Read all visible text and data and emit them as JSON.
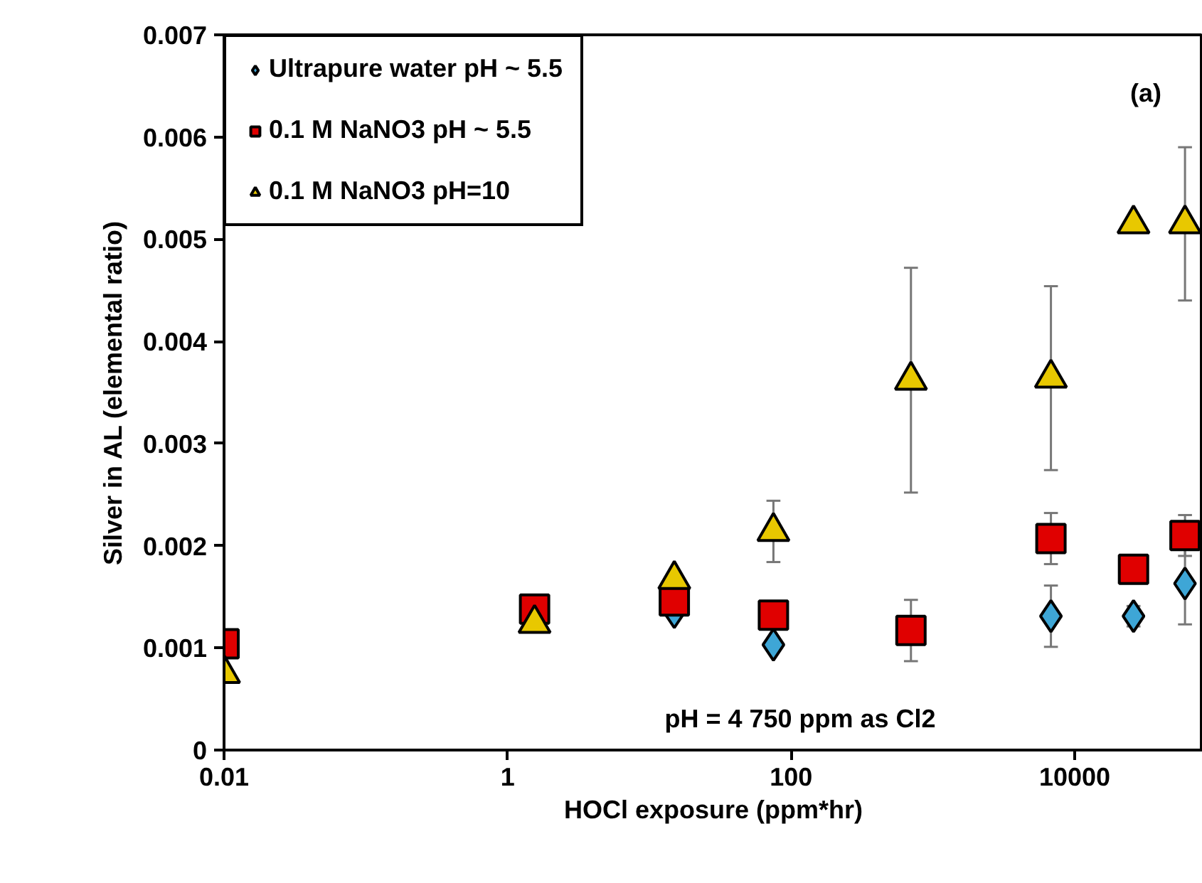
{
  "chart_data": {
    "type": "scatter",
    "xlabel": "HOCl exposure (ppm*hr)",
    "ylabel": "Silver in AL (elemental ratio)",
    "log": "x",
    "x": [
      0.01,
      1.55,
      15,
      75,
      700,
      6800,
      26000,
      60000
    ],
    "xlim": [
      0.01,
      80000
    ],
    "xticks": [
      0.01,
      1,
      100,
      10000
    ],
    "ylim": [
      0,
      0.007
    ],
    "yticks": [
      0,
      0.001,
      0.002,
      0.003,
      0.004,
      0.005,
      0.006,
      0.007
    ],
    "grid": false,
    "legend": "top left",
    "series": [
      {
        "name": "Ultrapure water pH ~ 5.5",
        "color": "#3ea6d6",
        "marker": "diamond",
        "values": [
          null,
          null,
          0.00135,
          0.00103,
          null,
          0.00131,
          0.00131,
          0.00163
        ],
        "errors": [
          null,
          null,
          null,
          null,
          null,
          0.0003,
          0.0001,
          0.0004
        ]
      },
      {
        "name": "0.1 M NaNO3 pH ~ 5.5",
        "color": "#e00000",
        "marker": "square",
        "values": [
          0.00104,
          0.00138,
          0.00146,
          0.00132,
          0.00117,
          0.00207,
          0.00177,
          0.0021
        ],
        "errors": [
          null,
          null,
          null,
          null,
          0.0003,
          0.00025,
          null,
          0.0002
        ]
      },
      {
        "name": "0.1 M NaNO3 pH=10",
        "color": "#e8c800",
        "marker": "triangle",
        "values": [
          0.00075,
          0.00124,
          0.00167,
          0.00214,
          0.00362,
          0.00364,
          0.00515,
          0.00515
        ],
        "errors": [
          null,
          null,
          null,
          0.0003,
          0.0011,
          0.0009,
          null,
          0.00075
        ]
      }
    ],
    "annotations": [
      "(a)",
      "pH = 4   750 ppm as Cl2"
    ]
  }
}
